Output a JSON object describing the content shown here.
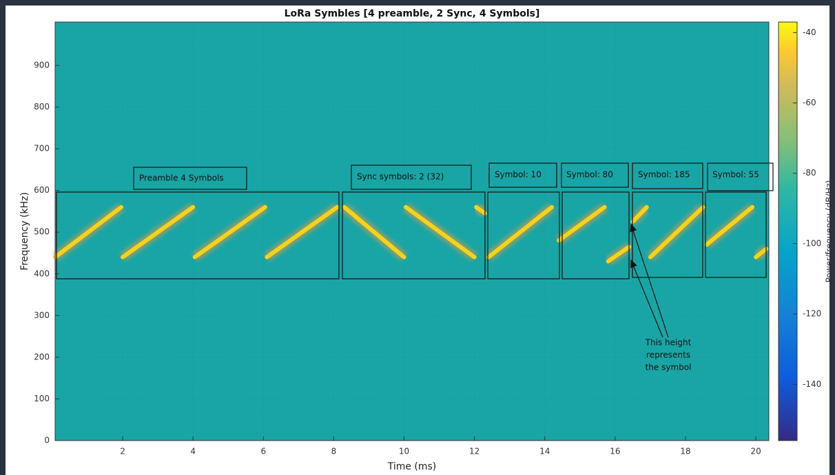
{
  "chart_data": {
    "type": "spectrogram",
    "title": "LoRa Symbles [4 preamble, 2 Sync, 4 Symbols]",
    "xlabel": "Time (ms)",
    "ylabel": "Frequency (kHz)",
    "colorbar_label": "Power/frequency (dB/Hz)",
    "xlim": [
      0.08,
      20.37
    ],
    "xticks": [
      2,
      4,
      6,
      8,
      10,
      12,
      14,
      16,
      18,
      20
    ],
    "ylim": [
      0,
      1004
    ],
    "yticks": [
      0,
      100,
      200,
      300,
      400,
      500,
      600,
      700,
      800,
      900
    ],
    "clim": [
      -156,
      -37
    ],
    "cticks": [
      -140,
      -120,
      -100,
      -80,
      -60,
      -40
    ],
    "grid": true,
    "background_color": "#19a5a6",
    "chirp_color": "#f7d21c",
    "segments": [
      {
        "x": [
          0.08,
          1.96
        ],
        "y": [
          440,
          560
        ]
      },
      {
        "x": [
          2.0,
          4.0
        ],
        "y": [
          440,
          560
        ]
      },
      {
        "x": [
          4.05,
          6.05
        ],
        "y": [
          440,
          560
        ]
      },
      {
        "x": [
          6.1,
          8.1
        ],
        "y": [
          440,
          560
        ]
      },
      {
        "x": [
          8.3,
          10.0
        ],
        "y": [
          560,
          440
        ]
      },
      {
        "x": [
          10.05,
          12.0
        ],
        "y": [
          560,
          440
        ]
      },
      {
        "x": [
          12.05,
          12.3
        ],
        "y": [
          560,
          545
        ]
      },
      {
        "x": [
          12.4,
          14.2
        ],
        "y": [
          440,
          560
        ]
      },
      {
        "x": [
          14.4,
          15.7
        ],
        "y": [
          480,
          560
        ]
      },
      {
        "x": [
          15.8,
          16.4
        ],
        "y": [
          430,
          465
        ]
      },
      {
        "x": [
          16.5,
          16.9
        ],
        "y": [
          525,
          560
        ]
      },
      {
        "x": [
          17.0,
          18.5
        ],
        "y": [
          440,
          560
        ]
      },
      {
        "x": [
          18.6,
          19.9
        ],
        "y": [
          470,
          560
        ]
      },
      {
        "x": [
          20.0,
          20.3
        ],
        "y": [
          440,
          460
        ]
      }
    ],
    "annotations": {
      "boxes": [
        "Preamble 4 Symbols",
        "Sync symbols: 2 (32)",
        "Symbol: 10",
        "Symbol: 80",
        "Symbol: 185",
        "Symbol: 55"
      ],
      "arrow_note": [
        "This height",
        "represents",
        "the symbol"
      ]
    }
  }
}
